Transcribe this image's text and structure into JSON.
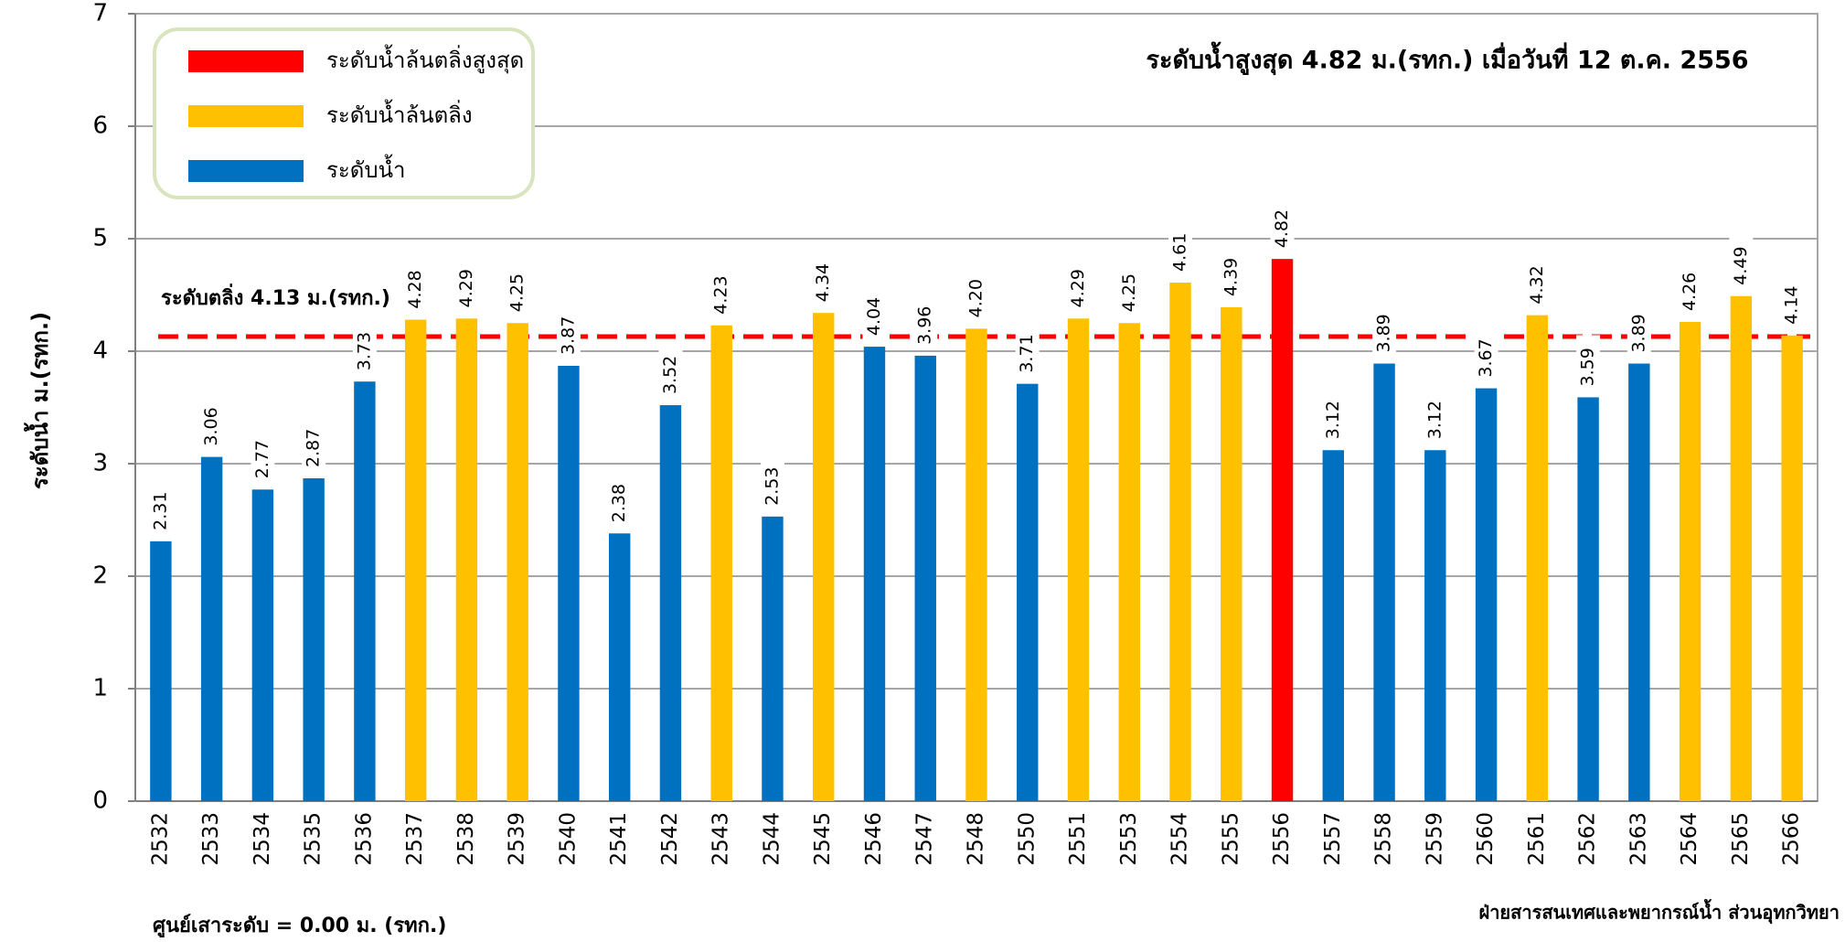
{
  "chart_data": {
    "type": "bar",
    "ylabel": "ระดับน้ำ ม.(รทก.)",
    "annotation": "ระดับน้ำสูงสุด 4.82 ม.(รทก.) เมื่อวันที่ 12 ต.ค. 2556",
    "threshold": {
      "label": "ระดับตลิ่ง 4.13 ม.(รทก.)",
      "value": 4.13,
      "color": "#ff0000"
    },
    "footer_left": "ศูนย์เสาระดับ = 0.00 ม. (รทก.)",
    "footer_right": "ฝ่ายสารสนเทศและพยากรณ์น้ำ ส่วนอุทกวิทยา",
    "legend": [
      {
        "name": "ระดับน้ำล้นตลิ่งสูงสุด",
        "color": "#ff0000"
      },
      {
        "name": "ระดับน้ำล้นตลิ่ง",
        "color": "#ffc000"
      },
      {
        "name": "ระดับน้ำ",
        "color": "#0070c0"
      }
    ],
    "categories": [
      "2532",
      "2533",
      "2534",
      "2535",
      "2536",
      "2537",
      "2538",
      "2539",
      "2540",
      "2541",
      "2542",
      "2543",
      "2544",
      "2545",
      "2546",
      "2547",
      "2548",
      "2550",
      "2551",
      "2553",
      "2554",
      "2555",
      "2556",
      "2557",
      "2558",
      "2559",
      "2560",
      "2561",
      "2562",
      "2563",
      "2564",
      "2565",
      "2566"
    ],
    "values": [
      2.31,
      3.06,
      2.77,
      2.87,
      3.73,
      4.28,
      4.29,
      4.25,
      3.87,
      2.38,
      3.52,
      4.23,
      2.53,
      4.34,
      4.04,
      3.96,
      4.2,
      3.71,
      4.29,
      4.25,
      4.61,
      4.39,
      4.82,
      3.12,
      3.89,
      3.12,
      3.67,
      4.32,
      3.59,
      3.89,
      4.26,
      4.49,
      4.14
    ],
    "value_labels": [
      "2.31",
      "3.06",
      "2.77",
      "2.87",
      "3.73",
      "4.28",
      "4.29",
      "4.25",
      "3.87",
      "2.38",
      "3.52",
      "4.23",
      "2.53",
      "4.34",
      "4.04",
      "3.96",
      "4.20",
      "3.71",
      "4.29",
      "4.25",
      "4.61",
      "4.39",
      "4.82",
      "3.12",
      "3.89",
      "3.12",
      "3.67",
      "4.32",
      "3.59",
      "3.89",
      "4.26",
      "4.49",
      "4.14"
    ],
    "colors": [
      "#0070c0",
      "#0070c0",
      "#0070c0",
      "#0070c0",
      "#0070c0",
      "#ffc000",
      "#ffc000",
      "#ffc000",
      "#0070c0",
      "#0070c0",
      "#0070c0",
      "#ffc000",
      "#0070c0",
      "#ffc000",
      "#0070c0",
      "#0070c0",
      "#ffc000",
      "#0070c0",
      "#ffc000",
      "#ffc000",
      "#ffc000",
      "#ffc000",
      "#ff0000",
      "#0070c0",
      "#0070c0",
      "#0070c0",
      "#0070c0",
      "#ffc000",
      "#0070c0",
      "#0070c0",
      "#ffc000",
      "#ffc000",
      "#ffc000"
    ],
    "ylim": [
      0,
      7
    ],
    "yticks": [
      0,
      1,
      2,
      3,
      4,
      5,
      6,
      7
    ],
    "grid": true
  }
}
